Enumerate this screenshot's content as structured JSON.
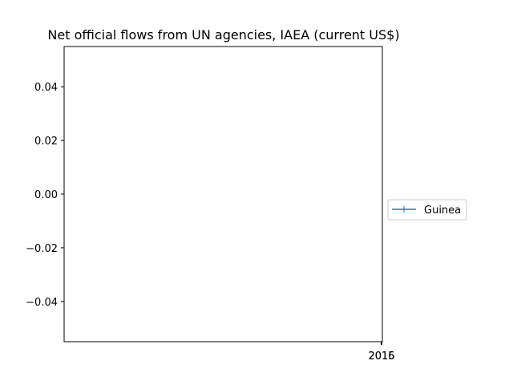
{
  "chart_data": {
    "type": "line",
    "title": "Net official flows from UN agencies, IAEA (current US$)",
    "xlabel": "",
    "ylabel": "",
    "x_ticks": [
      "2015",
      "2016"
    ],
    "y_ticks": [
      "0.04",
      "0.02",
      "0.00",
      "−0.02",
      "−0.04"
    ],
    "y_tick_values": [
      0.04,
      0.02,
      0.0,
      -0.02,
      -0.04
    ],
    "ylim": [
      -0.055,
      0.055
    ],
    "grid": false,
    "legend_position": "right",
    "series": [
      {
        "name": "Guinea",
        "color": "#1f77b4",
        "marker": "plus",
        "x": [],
        "values": []
      }
    ]
  }
}
